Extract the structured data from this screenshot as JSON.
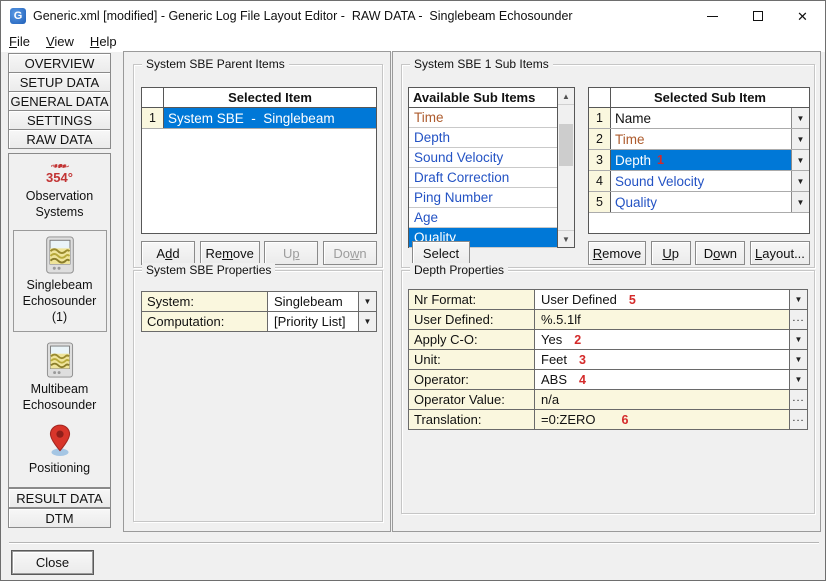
{
  "window": {
    "title": "Generic.xml [modified] - Generic Log File Layout Editor -  RAW DATA -  Singlebeam Echosounder",
    "app_icon_letter": "G"
  },
  "menu": {
    "items": [
      {
        "label": "File"
      },
      {
        "label": "View"
      },
      {
        "label": "Help"
      }
    ]
  },
  "sidebar": {
    "nav": [
      "OVERVIEW",
      "SETUP DATA",
      "GENERAL DATA",
      "SETTINGS",
      "RAW DATA"
    ],
    "observation_degrees": "354°",
    "observation_label": "Observation Systems",
    "singlebeam_label": "Singlebeam Echosounder (1)",
    "multibeam_label": "Multibeam Echosounder",
    "positioning_label": "Positioning",
    "result_data": "RESULT DATA",
    "dtm": "DTM"
  },
  "parent_items": {
    "group_title": "System SBE Parent Items",
    "header": "Selected Item",
    "rows": [
      {
        "num": "1",
        "label": "System SBE  -  Singlebeam"
      }
    ],
    "buttons": {
      "add": "Add",
      "remove": "Remove",
      "up": "Up",
      "down": "Down"
    }
  },
  "sbe_properties": {
    "group_title": "System SBE Properties",
    "rows": [
      {
        "name": "System:",
        "value": "Singlebeam"
      },
      {
        "name": "Computation:",
        "value": "[Priority List]"
      }
    ]
  },
  "sub_items": {
    "group_title": "System SBE 1 Sub Items",
    "available": {
      "header": "Available Sub Items",
      "items": [
        {
          "label": "Time"
        },
        {
          "label": "Depth"
        },
        {
          "label": "Sound Velocity"
        },
        {
          "label": "Draft Correction"
        },
        {
          "label": "Ping Number"
        },
        {
          "label": "Age"
        },
        {
          "label": "Quality"
        }
      ]
    },
    "select_button": "Select",
    "selected": {
      "header": "Selected Sub Item",
      "rows": [
        {
          "num": "1",
          "label": "Name",
          "badge": ""
        },
        {
          "num": "2",
          "label": "Time",
          "badge": ""
        },
        {
          "num": "3",
          "label": "Depth",
          "badge": "1"
        },
        {
          "num": "4",
          "label": "Sound Velocity",
          "badge": ""
        },
        {
          "num": "5",
          "label": "Quality",
          "badge": ""
        }
      ]
    },
    "buttons": {
      "remove": "Remove",
      "up": "Up",
      "down": "Down",
      "layout": "Layout..."
    }
  },
  "depth_properties": {
    "group_title": "Depth Properties",
    "rows": [
      {
        "name": "Nr Format:",
        "value": "User Defined",
        "badge": "5"
      },
      {
        "name": "User Defined:",
        "value": "%.5.1lf",
        "badge": ""
      },
      {
        "name": "Apply C-O:",
        "value": "Yes",
        "badge": "2"
      },
      {
        "name": "Unit:",
        "value": "Feet",
        "badge": "3"
      },
      {
        "name": "Operator:",
        "value": "ABS",
        "badge": "4"
      },
      {
        "name": "Operator Value:",
        "value": "n/a",
        "badge": ""
      },
      {
        "name": "Translation:",
        "value": "=0:ZERO",
        "badge": "6"
      }
    ]
  },
  "footer": {
    "close": "Close"
  },
  "icons": {
    "dropdown": "▼",
    "scroll_up": "▲",
    "scroll_down": "▼",
    "ellipsis": "...",
    "close_glyph": "✕"
  },
  "colors": {
    "selection_blue": "#0078d7",
    "cream": "#faf7de",
    "item_blue": "#2453c4",
    "item_brown": "#ad5b2d",
    "badge_red": "#d42a2a"
  }
}
